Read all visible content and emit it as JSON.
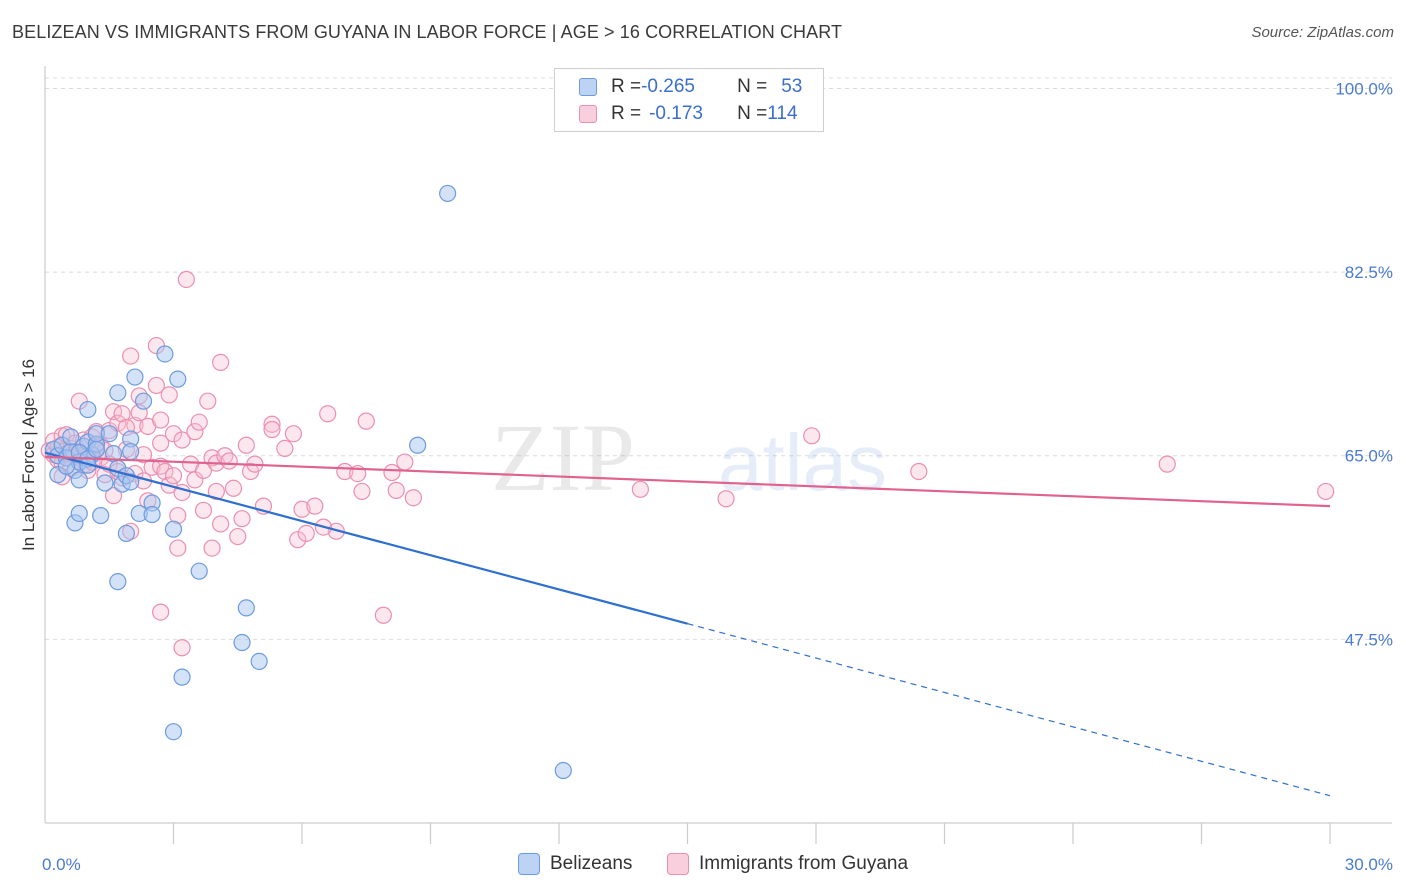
{
  "header": {
    "title": "BELIZEAN VS IMMIGRANTS FROM GUYANA IN LABOR FORCE | AGE > 16 CORRELATION CHART",
    "source": "Source: ZipAtlas.com"
  },
  "watermark": {
    "zip": "ZIP",
    "atlas": "atlas"
  },
  "legend": {
    "rows": [
      {
        "r_label": "R = ",
        "r_value": "-0.265",
        "n_label": "N = ",
        "n_value": "53"
      },
      {
        "r_label": "R = ",
        "r_value": "-0.173",
        "n_label": "N = ",
        "n_value": "114"
      }
    ]
  },
  "bottom_legend": {
    "belizeans": "Belizeans",
    "guyana": "Immigrants from Guyana"
  },
  "colors": {
    "blue_fill": "#a8c6ef",
    "blue_stroke": "#6c9be0",
    "blue_line": "#2f6fcf",
    "pink_fill": "#f6bfd1",
    "pink_stroke": "#ec8fb0",
    "pink_line": "#e0638f",
    "grid": "#dcdcdc",
    "tick_text": "#4a7bd0"
  },
  "chart_data": {
    "type": "scatter",
    "title": "BELIZEAN VS IMMIGRANTS FROM GUYANA IN LABOR FORCE | AGE > 16 CORRELATION CHART",
    "xlabel": "",
    "ylabel": "In Labor Force | Age > 16",
    "xlim": [
      0,
      30
    ],
    "ylim": [
      30,
      101
    ],
    "x_tick_labels": [
      "0.0%",
      "30.0%"
    ],
    "y_ticks": [
      47.5,
      65.0,
      82.5,
      100.0
    ],
    "y_tick_labels": [
      "47.5%",
      "65.0%",
      "82.5%",
      "100.0%"
    ],
    "grid": true,
    "legend_position": "top-center",
    "series": [
      {
        "name": "Belizeans",
        "r": -0.265,
        "n": 53,
        "trend": {
          "x0": 0,
          "y0": 65.3,
          "x1": 15,
          "y1": 49.0,
          "dash_to_x": 30,
          "dash_to_y": 32.6
        },
        "points": [
          [
            0.2,
            65.6
          ],
          [
            0.3,
            65.0
          ],
          [
            0.4,
            66.0
          ],
          [
            0.5,
            64.8
          ],
          [
            0.6,
            65.4
          ],
          [
            0.7,
            63.6
          ],
          [
            0.8,
            64.4
          ],
          [
            0.9,
            65.9
          ],
          [
            1.0,
            66.3
          ],
          [
            1.1,
            65.1
          ],
          [
            0.3,
            63.2
          ],
          [
            0.5,
            64.0
          ],
          [
            0.6,
            66.8
          ],
          [
            0.8,
            65.3
          ],
          [
            1.0,
            64.7
          ],
          [
            1.2,
            66.1
          ],
          [
            0.7,
            58.6
          ],
          [
            0.8,
            62.7
          ],
          [
            0.8,
            59.5
          ],
          [
            1.0,
            69.4
          ],
          [
            1.2,
            67.1
          ],
          [
            1.2,
            65.6
          ],
          [
            1.3,
            59.3
          ],
          [
            1.4,
            62.4
          ],
          [
            1.5,
            67.1
          ],
          [
            1.6,
            65.2
          ],
          [
            1.7,
            53.0
          ],
          [
            1.7,
            63.8
          ],
          [
            1.7,
            71.0
          ],
          [
            1.8,
            62.3
          ],
          [
            1.9,
            63.1
          ],
          [
            1.9,
            57.6
          ],
          [
            2.0,
            62.5
          ],
          [
            2.0,
            66.6
          ],
          [
            2.0,
            65.4
          ],
          [
            2.1,
            72.5
          ],
          [
            2.2,
            59.5
          ],
          [
            2.3,
            70.2
          ],
          [
            2.5,
            60.5
          ],
          [
            2.5,
            59.4
          ],
          [
            2.8,
            74.7
          ],
          [
            3.0,
            38.7
          ],
          [
            3.0,
            58.0
          ],
          [
            3.1,
            72.3
          ],
          [
            3.2,
            43.9
          ],
          [
            3.6,
            54.0
          ],
          [
            4.6,
            47.2
          ],
          [
            4.7,
            50.5
          ],
          [
            5.0,
            45.4
          ],
          [
            8.7,
            66.0
          ],
          [
            9.4,
            90.0
          ],
          [
            12.1,
            35.0
          ],
          [
            1.0,
            64.1
          ]
        ]
      },
      {
        "name": "Immigrants from Guyana",
        "r": -0.173,
        "n": 114,
        "trend": {
          "x0": 0,
          "y0": 64.9,
          "x1": 30,
          "y1": 60.2
        },
        "points": [
          [
            0.1,
            65.5
          ],
          [
            0.2,
            65.1
          ],
          [
            0.2,
            66.4
          ],
          [
            0.3,
            64.6
          ],
          [
            0.3,
            65.8
          ],
          [
            0.4,
            66.9
          ],
          [
            0.4,
            64.3
          ],
          [
            0.5,
            65.2
          ],
          [
            0.5,
            67.0
          ],
          [
            0.6,
            63.8
          ],
          [
            0.6,
            65.7
          ],
          [
            0.7,
            66.2
          ],
          [
            0.7,
            64.9
          ],
          [
            0.8,
            65.4
          ],
          [
            0.8,
            70.2
          ],
          [
            0.9,
            64.1
          ],
          [
            0.9,
            66.5
          ],
          [
            1.0,
            65.0
          ],
          [
            1.0,
            63.6
          ],
          [
            1.1,
            66.8
          ],
          [
            1.1,
            64.4
          ],
          [
            1.2,
            65.9
          ],
          [
            1.2,
            67.3
          ],
          [
            1.3,
            64.8
          ],
          [
            1.3,
            66.0
          ],
          [
            1.4,
            63.2
          ],
          [
            1.4,
            65.5
          ],
          [
            1.5,
            67.4
          ],
          [
            1.5,
            64.2
          ],
          [
            1.6,
            69.2
          ],
          [
            1.6,
            61.2
          ],
          [
            1.7,
            68.1
          ],
          [
            1.7,
            63.5
          ],
          [
            1.8,
            69.0
          ],
          [
            1.8,
            62.9
          ],
          [
            1.9,
            65.6
          ],
          [
            2.0,
            57.8
          ],
          [
            2.0,
            74.5
          ],
          [
            2.1,
            67.9
          ],
          [
            2.1,
            63.3
          ],
          [
            2.2,
            69.1
          ],
          [
            2.2,
            70.7
          ],
          [
            2.3,
            62.6
          ],
          [
            2.3,
            65.1
          ],
          [
            2.4,
            67.8
          ],
          [
            2.4,
            60.7
          ],
          [
            2.5,
            63.9
          ],
          [
            2.6,
            75.5
          ],
          [
            2.6,
            71.7
          ],
          [
            2.7,
            68.4
          ],
          [
            2.7,
            66.2
          ],
          [
            2.7,
            64.0
          ],
          [
            2.7,
            50.1
          ],
          [
            2.8,
            63.5
          ],
          [
            2.9,
            62.2
          ],
          [
            3.0,
            67.1
          ],
          [
            3.0,
            63.1
          ],
          [
            3.1,
            59.3
          ],
          [
            3.1,
            56.2
          ],
          [
            3.2,
            66.5
          ],
          [
            3.2,
            61.5
          ],
          [
            3.2,
            46.7
          ],
          [
            3.3,
            81.8
          ],
          [
            3.4,
            64.2
          ],
          [
            3.5,
            67.3
          ],
          [
            3.5,
            62.7
          ],
          [
            3.6,
            68.2
          ],
          [
            3.7,
            63.6
          ],
          [
            3.7,
            59.8
          ],
          [
            3.8,
            70.2
          ],
          [
            3.9,
            64.8
          ],
          [
            3.9,
            56.2
          ],
          [
            4.0,
            61.6
          ],
          [
            4.0,
            64.3
          ],
          [
            4.1,
            73.9
          ],
          [
            4.1,
            58.5
          ],
          [
            4.2,
            65.0
          ],
          [
            4.3,
            64.5
          ],
          [
            4.4,
            61.9
          ],
          [
            4.5,
            57.3
          ],
          [
            4.6,
            59.0
          ],
          [
            4.7,
            66.0
          ],
          [
            4.8,
            63.5
          ],
          [
            4.9,
            64.2
          ],
          [
            5.1,
            60.2
          ],
          [
            5.3,
            68.0
          ],
          [
            5.3,
            67.5
          ],
          [
            5.6,
            65.7
          ],
          [
            5.8,
            67.1
          ],
          [
            5.9,
            57.0
          ],
          [
            6.0,
            59.9
          ],
          [
            6.1,
            57.6
          ],
          [
            6.3,
            60.2
          ],
          [
            6.6,
            69.0
          ],
          [
            6.8,
            57.8
          ],
          [
            7.0,
            63.5
          ],
          [
            7.4,
            61.6
          ],
          [
            7.5,
            68.3
          ],
          [
            7.9,
            49.8
          ],
          [
            8.1,
            63.4
          ],
          [
            8.2,
            61.7
          ],
          [
            8.4,
            64.4
          ],
          [
            8.6,
            61.0
          ],
          [
            13.9,
            61.8
          ],
          [
            15.9,
            60.9
          ],
          [
            17.9,
            66.9
          ],
          [
            20.4,
            63.5
          ],
          [
            26.2,
            64.2
          ],
          [
            29.9,
            61.6
          ],
          [
            0.4,
            63.0
          ],
          [
            1.9,
            67.7
          ],
          [
            2.9,
            70.8
          ],
          [
            6.5,
            58.2
          ],
          [
            7.3,
            63.3
          ]
        ]
      }
    ]
  }
}
